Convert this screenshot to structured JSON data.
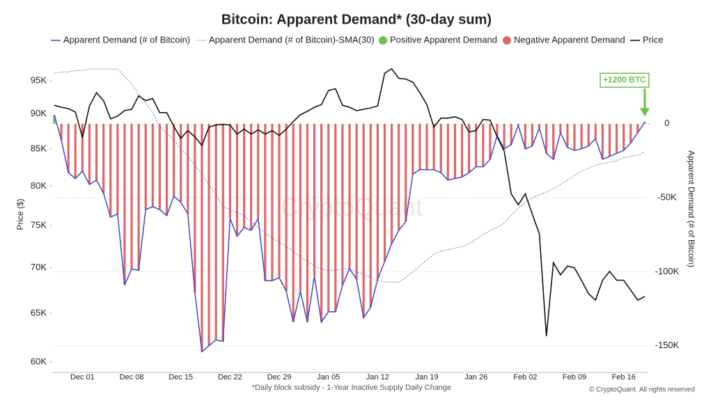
{
  "chart_data": {
    "type": "line-bar",
    "title": "Bitcoin: Apparent Demand* (30-day sum)",
    "y_label": "Price ($)",
    "y2_label": "Apparent Demand (# of Bitcoin)",
    "footnote": "*Daily block subsidy - 1-Year Inactive Supply Daily Change",
    "watermark": "CryptoQuant",
    "credit": "© CryptoQuant. All rights reserved",
    "annotation": {
      "text": "+1200 BTC",
      "index": 84,
      "color": "#6bbf4e"
    },
    "log_y": true,
    "grid": true,
    "categories": [
      null,
      null,
      null,
      null,
      "Dec 01",
      null,
      null,
      null,
      null,
      null,
      null,
      "Dec 08",
      null,
      null,
      null,
      null,
      null,
      null,
      "Dec 15",
      null,
      null,
      null,
      null,
      null,
      null,
      "Dec 22",
      null,
      null,
      null,
      null,
      null,
      null,
      "Dec 29",
      null,
      null,
      null,
      null,
      null,
      null,
      "Jan 05",
      null,
      null,
      null,
      null,
      null,
      null,
      "Jan 12",
      null,
      null,
      null,
      null,
      null,
      null,
      "Jan 19",
      null,
      null,
      null,
      null,
      null,
      null,
      "Jan 26",
      null,
      null,
      null,
      null,
      null,
      null,
      "Feb 02",
      null,
      null,
      null,
      null,
      null,
      null,
      "Feb 09",
      null,
      null,
      null,
      null,
      null,
      null,
      "Feb 16",
      null,
      null,
      null
    ],
    "ylim": [
      59000,
      99000
    ],
    "yticks": [
      {
        "value": 60000,
        "label": "60K"
      },
      {
        "value": 65000,
        "label": "65K"
      },
      {
        "value": 70000,
        "label": "70K"
      },
      {
        "value": 75000,
        "label": "75K"
      },
      {
        "value": 80000,
        "label": "80K"
      },
      {
        "value": 85000,
        "label": "85K"
      },
      {
        "value": 90000,
        "label": "90K"
      },
      {
        "value": 95000,
        "label": "95K"
      }
    ],
    "y2lim": [
      -168000,
      46000
    ],
    "y2ticks": [
      0,
      {
        "value": -50000,
        "label": "-50K"
      },
      {
        "value": -100000,
        "label": "-100K"
      },
      {
        "value": -150000,
        "label": "-150K"
      }
    ],
    "bars": [
      {
        "name": "Positive Apparent Demand",
        "color": "#6bbf4e"
      },
      {
        "name": "Negative Apparent Demand",
        "color": "#e06666"
      }
    ],
    "series": [
      {
        "name": "Apparent Demand (# of Bitcoin)",
        "color": "#4b4fc4",
        "axis": "y2",
        "bars": true,
        "values": [
          6000,
          -11000,
          -33000,
          -37000,
          -32000,
          -41000,
          -38000,
          -47000,
          -63000,
          -61000,
          -109000,
          -98000,
          -99000,
          -58000,
          -56000,
          -58000,
          -62000,
          -49000,
          -53000,
          -61000,
          -114000,
          -154000,
          -150000,
          -146000,
          -147000,
          -64000,
          -76000,
          -70000,
          -72000,
          -64000,
          -106000,
          -106000,
          -104000,
          -113000,
          -134000,
          -113000,
          -134000,
          -103000,
          -134000,
          -127000,
          -127000,
          -109000,
          -98000,
          -105000,
          -131000,
          -124000,
          -105000,
          -93000,
          -81000,
          -72000,
          -66000,
          -34000,
          -31000,
          -31000,
          -31000,
          -33000,
          -38000,
          -37000,
          -36000,
          -33000,
          -29000,
          -29000,
          -24000,
          -8000,
          -17000,
          -14000,
          -1000,
          -17000,
          -15000,
          -3000,
          -20000,
          -24000,
          -6000,
          -16000,
          -18000,
          -17000,
          -15000,
          -10000,
          -24000,
          -22000,
          -20000,
          -18000,
          -13000,
          -6000,
          1200
        ]
      },
      {
        "name": "Apparent Demand (# of Bitcoin)-SMA(30)",
        "color": "#6a6fd0",
        "axis": "y2",
        "dotted": true,
        "values": [
          34000,
          35000,
          35000,
          36000,
          36000,
          37000,
          37000,
          37000,
          37000,
          37000,
          32000,
          27000,
          20000,
          14000,
          8000,
          -2000,
          -6000,
          -11000,
          -17000,
          -22000,
          -28000,
          -34000,
          -41000,
          -48000,
          -56000,
          -58000,
          -60000,
          -62000,
          -66000,
          -70000,
          -74000,
          -77000,
          -80000,
          -83000,
          -86000,
          -90000,
          -93000,
          -96000,
          -98000,
          -99000,
          -99000,
          -98000,
          -98000,
          -100000,
          -102000,
          -104000,
          -106000,
          -107000,
          -107000,
          -107000,
          -104000,
          -100000,
          -96000,
          -92000,
          -88000,
          -86000,
          -85000,
          -84000,
          -83000,
          -81000,
          -78000,
          -75000,
          -72000,
          -70000,
          -67000,
          -62000,
          -57000,
          -53000,
          -50000,
          -48000,
          -46000,
          -44000,
          -41000,
          -38000,
          -35000,
          -32000,
          -30000,
          -28000,
          -27000,
          -26000,
          -25000,
          -23000,
          -22000,
          -21000,
          -19000
        ]
      },
      {
        "name": "Price",
        "color": "#111111",
        "axis": "y",
        "values": [
          91300,
          91000,
          90800,
          90300,
          86600,
          91200,
          93200,
          92000,
          89300,
          89700,
          90500,
          90700,
          92700,
          92000,
          92300,
          90200,
          90200,
          88200,
          86500,
          87600,
          86700,
          85500,
          88100,
          88400,
          88500,
          88400,
          87100,
          87800,
          87100,
          87700,
          87100,
          87600,
          86900,
          87800,
          88900,
          89900,
          90400,
          91000,
          91400,
          93500,
          93800,
          91300,
          91000,
          90500,
          90700,
          90900,
          91200,
          96200,
          96900,
          95400,
          95300,
          94800,
          93200,
          91400,
          88100,
          89400,
          89400,
          89600,
          89200,
          87400,
          87600,
          89200,
          89100,
          86700,
          84700,
          79000,
          77600,
          79000,
          76400,
          74000,
          62600,
          70600,
          69200,
          70200,
          70000,
          68600,
          67100,
          66400,
          68600,
          69600,
          68600,
          68600,
          67500,
          66400,
          66800
        ]
      }
    ]
  }
}
